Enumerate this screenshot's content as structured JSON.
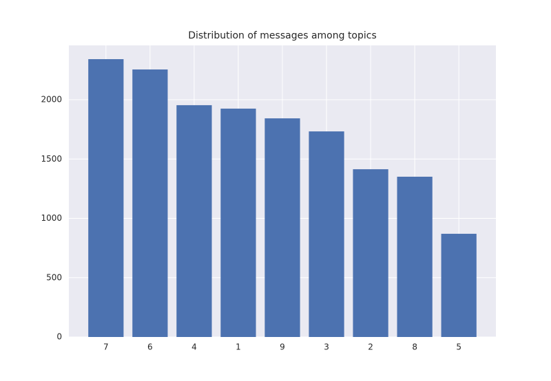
{
  "chart_data": {
    "type": "bar",
    "title": "Distribution of messages among topics",
    "categories": [
      "7",
      "6",
      "4",
      "1",
      "9",
      "3",
      "2",
      "8",
      "5"
    ],
    "values": [
      2342,
      2255,
      1954,
      1925,
      1843,
      1733,
      1414,
      1351,
      870
    ],
    "color": "#4c72b0",
    "ylim": [
      0,
      2458
    ],
    "yticks": [
      0,
      500,
      1000,
      1500,
      2000
    ],
    "grid": true
  }
}
